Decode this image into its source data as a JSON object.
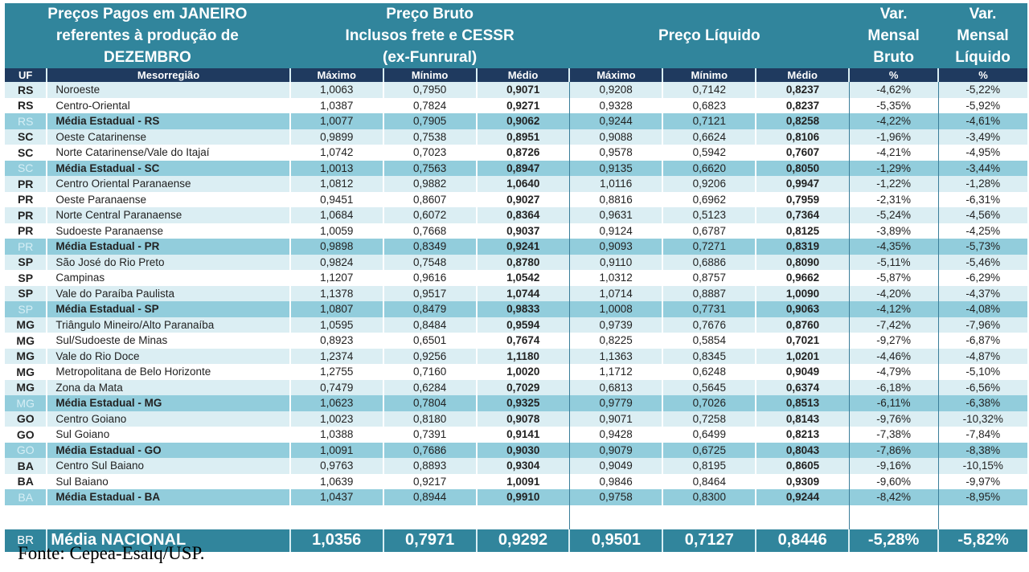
{
  "header": {
    "title": "Preços Pagos em JANEIRO\nreferentes à produção de\nDEZEMBRO",
    "bruto": "Preço Bruto\nInclusos frete e CESSR\n(ex-Funrural)",
    "liquido": "Preço Líquido",
    "var_bruto": "Var.\nMensal\nBruto",
    "var_liquido": "Var.\nMensal\nLíquido"
  },
  "columns": [
    "UF",
    "Mesorregião",
    "Máximo",
    "Mínimo",
    "Médio",
    "Máximo",
    "Mínimo",
    "Médio",
    "%",
    "%"
  ],
  "rows": [
    {
      "type": "shade",
      "uf": "RS",
      "reg": "Noroeste",
      "v": [
        "1,0063",
        "0,7950",
        "0,9071",
        "0,9208",
        "0,7142",
        "0,8237",
        "-4,62%",
        "-5,22%"
      ]
    },
    {
      "type": "plain",
      "uf": "RS",
      "reg": "Centro-Oriental",
      "v": [
        "1,0387",
        "0,7824",
        "0,9271",
        "0,9328",
        "0,6823",
        "0,8237",
        "-5,35%",
        "-5,92%"
      ]
    },
    {
      "type": "avg",
      "uf": "RS",
      "reg": "Média Estadual - RS",
      "v": [
        "1,0077",
        "0,7905",
        "0,9062",
        "0,9244",
        "0,7121",
        "0,8258",
        "-4,22%",
        "-4,61%"
      ]
    },
    {
      "type": "shade",
      "uf": "SC",
      "reg": "Oeste Catarinense",
      "v": [
        "0,9899",
        "0,7538",
        "0,8951",
        "0,9088",
        "0,6624",
        "0,8106",
        "-1,96%",
        "-3,49%"
      ]
    },
    {
      "type": "plain",
      "uf": "SC",
      "reg": "Norte Catarinense/Vale do Itajaí",
      "v": [
        "1,0742",
        "0,7023",
        "0,8726",
        "0,9578",
        "0,5942",
        "0,7607",
        "-4,21%",
        "-4,95%"
      ]
    },
    {
      "type": "avg",
      "uf": "SC",
      "reg": "Média Estadual - SC",
      "v": [
        "1,0013",
        "0,7563",
        "0,8947",
        "0,9135",
        "0,6620",
        "0,8050",
        "-1,29%",
        "-3,44%"
      ]
    },
    {
      "type": "shade",
      "uf": "PR",
      "reg": "Centro Oriental Paranaense",
      "v": [
        "1,0812",
        "0,9882",
        "1,0640",
        "1,0116",
        "0,9206",
        "0,9947",
        "-1,22%",
        "-1,28%"
      ]
    },
    {
      "type": "plain",
      "uf": "PR",
      "reg": "Oeste Paranaense",
      "v": [
        "0,9451",
        "0,8607",
        "0,9027",
        "0,8816",
        "0,6962",
        "0,7959",
        "-2,31%",
        "-6,31%"
      ]
    },
    {
      "type": "shade",
      "uf": "PR",
      "reg": "Norte Central Paranaense",
      "v": [
        "1,0684",
        "0,6072",
        "0,8364",
        "0,9631",
        "0,5123",
        "0,7364",
        "-5,24%",
        "-4,56%"
      ]
    },
    {
      "type": "plain",
      "uf": "PR",
      "reg": "Sudoeste Paranaense",
      "v": [
        "1,0059",
        "0,7668",
        "0,9037",
        "0,9124",
        "0,6787",
        "0,8125",
        "-3,89%",
        "-4,25%"
      ]
    },
    {
      "type": "avg",
      "uf": "PR",
      "reg": "Média Estadual - PR",
      "v": [
        "0,9898",
        "0,8349",
        "0,9241",
        "0,9093",
        "0,7271",
        "0,8319",
        "-4,35%",
        "-5,73%"
      ]
    },
    {
      "type": "shade",
      "uf": "SP",
      "reg": "São José do Rio Preto",
      "v": [
        "0,9824",
        "0,7548",
        "0,8780",
        "0,9110",
        "0,6886",
        "0,8090",
        "-5,11%",
        "-5,46%"
      ]
    },
    {
      "type": "plain",
      "uf": "SP",
      "reg": "Campinas",
      "v": [
        "1,1207",
        "0,9616",
        "1,0542",
        "1,0312",
        "0,8757",
        "0,9662",
        "-5,87%",
        "-6,29%"
      ]
    },
    {
      "type": "shade",
      "uf": "SP",
      "reg": "Vale do Paraíba Paulista",
      "v": [
        "1,1378",
        "0,9517",
        "1,0744",
        "1,0714",
        "0,8887",
        "1,0090",
        "-4,20%",
        "-4,37%"
      ]
    },
    {
      "type": "avg",
      "uf": "SP",
      "reg": "Média Estadual - SP",
      "v": [
        "1,0807",
        "0,8479",
        "0,9833",
        "1,0008",
        "0,7731",
        "0,9063",
        "-4,12%",
        "-4,08%"
      ]
    },
    {
      "type": "shade",
      "uf": "MG",
      "reg": "Triângulo Mineiro/Alto Paranaíba",
      "v": [
        "1,0595",
        "0,8484",
        "0,9594",
        "0,9739",
        "0,7676",
        "0,8760",
        "-7,42%",
        "-7,96%"
      ]
    },
    {
      "type": "plain",
      "uf": "MG",
      "reg": "Sul/Sudoeste de Minas",
      "v": [
        "0,8923",
        "0,6501",
        "0,7674",
        "0,8225",
        "0,5854",
        "0,7021",
        "-9,27%",
        "-6,87%"
      ]
    },
    {
      "type": "shade",
      "uf": "MG",
      "reg": "Vale do Rio Doce",
      "v": [
        "1,2374",
        "0,9256",
        "1,1180",
        "1,1363",
        "0,8345",
        "1,0201",
        "-4,46%",
        "-4,87%"
      ]
    },
    {
      "type": "plain",
      "uf": "MG",
      "reg": "Metropolitana de Belo Horizonte",
      "v": [
        "1,2755",
        "0,7160",
        "1,0020",
        "1,1712",
        "0,6248",
        "0,9049",
        "-4,79%",
        "-5,10%"
      ]
    },
    {
      "type": "shade",
      "uf": "MG",
      "reg": "Zona da Mata",
      "v": [
        "0,7479",
        "0,6284",
        "0,7029",
        "0,6813",
        "0,5645",
        "0,6374",
        "-6,18%",
        "-6,56%"
      ]
    },
    {
      "type": "avg",
      "uf": "MG",
      "reg": "Média Estadual - MG",
      "v": [
        "1,0623",
        "0,7804",
        "0,9325",
        "0,9779",
        "0,7026",
        "0,8513",
        "-6,11%",
        "-6,38%"
      ]
    },
    {
      "type": "shade",
      "uf": "GO",
      "reg": "Centro Goiano",
      "v": [
        "1,0023",
        "0,8180",
        "0,9078",
        "0,9071",
        "0,7258",
        "0,8143",
        "-9,76%",
        "-10,32%"
      ]
    },
    {
      "type": "plain",
      "uf": "GO",
      "reg": "Sul Goiano",
      "v": [
        "1,0388",
        "0,7391",
        "0,9141",
        "0,9428",
        "0,6499",
        "0,8213",
        "-7,38%",
        "-7,84%"
      ]
    },
    {
      "type": "avg",
      "uf": "GO",
      "reg": "Média Estadual - GO",
      "v": [
        "1,0091",
        "0,7686",
        "0,9030",
        "0,9079",
        "0,6725",
        "0,8043",
        "-7,86%",
        "-8,38%"
      ]
    },
    {
      "type": "shade",
      "uf": "BA",
      "reg": "Centro Sul Baiano",
      "v": [
        "0,9763",
        "0,8893",
        "0,9304",
        "0,9049",
        "0,8195",
        "0,8605",
        "-9,16%",
        "-10,15%"
      ]
    },
    {
      "type": "plain",
      "uf": "BA",
      "reg": "Sul Baiano",
      "v": [
        "1,0639",
        "0,9217",
        "1,0091",
        "0,9846",
        "0,8464",
        "0,9309",
        "-9,60%",
        "-9,97%"
      ]
    },
    {
      "type": "avg",
      "uf": "BA",
      "reg": "Média Estadual - BA",
      "v": [
        "1,0437",
        "0,8944",
        "0,9910",
        "0,9758",
        "0,8300",
        "0,9244",
        "-8,42%",
        "-8,95%"
      ]
    }
  ],
  "national": {
    "uf": "BR",
    "reg": "Média NACIONAL",
    "v": [
      "1,0356",
      "0,7971",
      "0,9292",
      "0,9501",
      "0,7127",
      "0,8446",
      "-5,28%",
      "-5,82%"
    ]
  },
  "source": "Fonte: Cepea-Esalq/USP.",
  "colors": {
    "header": "#31859c",
    "subheader": "#1f3a5f",
    "shade": "#dbeef3",
    "avg": "#92cddc"
  }
}
